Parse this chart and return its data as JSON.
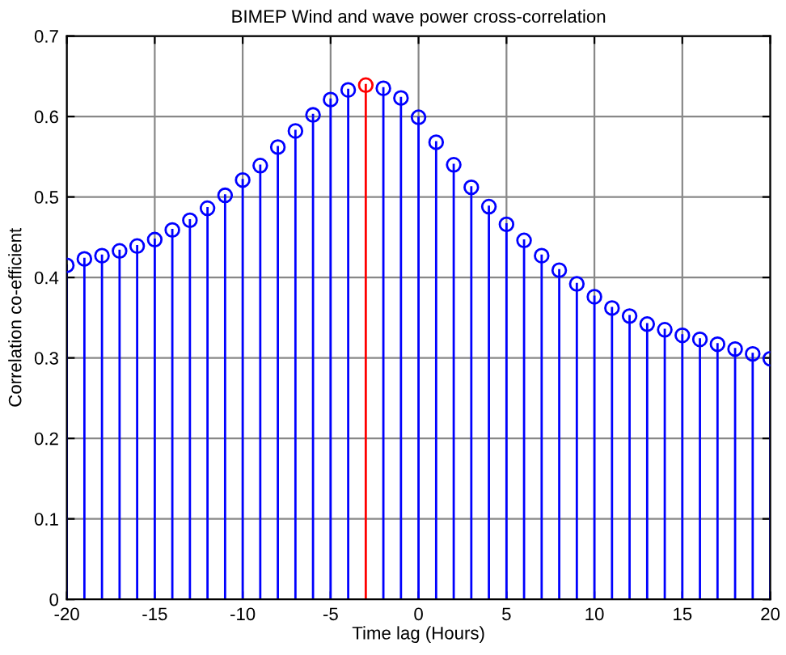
{
  "chart_data": {
    "type": "lollipop",
    "title": "BIMEP Wind and wave power cross-correlation",
    "xlabel": "Time lag (Hours)",
    "ylabel": "Correlation co-efficient",
    "x": [
      -20,
      -19,
      -18,
      -17,
      -16,
      -15,
      -14,
      -13,
      -12,
      -11,
      -10,
      -9,
      -8,
      -7,
      -6,
      -5,
      -4,
      -3,
      -2,
      -1,
      0,
      1,
      2,
      3,
      4,
      5,
      6,
      7,
      8,
      9,
      10,
      11,
      12,
      13,
      14,
      15,
      16,
      17,
      18,
      19,
      20
    ],
    "values": [
      0.415,
      0.423,
      0.427,
      0.433,
      0.439,
      0.447,
      0.459,
      0.471,
      0.486,
      0.502,
      0.521,
      0.539,
      0.562,
      0.582,
      0.602,
      0.621,
      0.633,
      0.639,
      0.635,
      0.623,
      0.599,
      0.568,
      0.54,
      0.512,
      0.488,
      0.466,
      0.446,
      0.427,
      0.409,
      0.392,
      0.376,
      0.362,
      0.352,
      0.342,
      0.335,
      0.328,
      0.323,
      0.317,
      0.311,
      0.305,
      0.299
    ],
    "colors": [
      "#0000ff",
      "#0000ff",
      "#0000ff",
      "#0000ff",
      "#0000ff",
      "#0000ff",
      "#0000ff",
      "#0000ff",
      "#0000ff",
      "#0000ff",
      "#0000ff",
      "#0000ff",
      "#0000ff",
      "#0000ff",
      "#0000ff",
      "#0000ff",
      "#0000ff",
      "#ff0000",
      "#0000ff",
      "#0000ff",
      "#0000ff",
      "#0000ff",
      "#0000ff",
      "#0000ff",
      "#0000ff",
      "#0000ff",
      "#0000ff",
      "#0000ff",
      "#0000ff",
      "#0000ff",
      "#0000ff",
      "#0000ff",
      "#0000ff",
      "#0000ff",
      "#0000ff",
      "#0000ff",
      "#0000ff",
      "#0000ff",
      "#0000ff",
      "#0000ff",
      "#0000ff"
    ],
    "xlim": [
      -20,
      20
    ],
    "xticks": [
      -20,
      -15,
      -10,
      -5,
      0,
      5,
      10,
      15,
      20
    ],
    "ylim": [
      0,
      0.7
    ],
    "yticks": [
      0,
      0.1,
      0.2,
      0.3,
      0.4,
      0.5,
      0.6,
      0.7
    ],
    "grid": true,
    "marker": "circle"
  }
}
